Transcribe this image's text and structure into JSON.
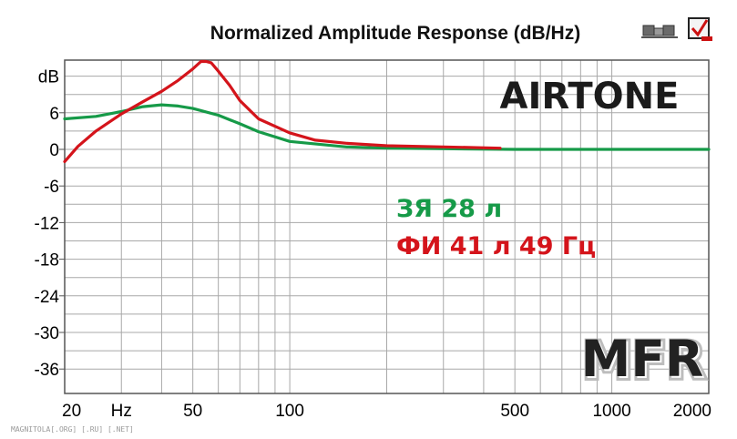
{
  "chart_data": {
    "type": "line",
    "title": "Normalized Amplitude Response (dB/Hz)",
    "ylabel": "dB",
    "xlabel": "",
    "x_scale": "log",
    "xlim": [
      20,
      2000
    ],
    "ylim": [
      -40,
      13
    ],
    "grid": true,
    "x_ticks": [
      {
        "value": 20,
        "label": "20"
      },
      {
        "value": 30,
        "label": "Hz"
      },
      {
        "value": 50,
        "label": "50"
      },
      {
        "value": 100,
        "label": "100"
      },
      {
        "value": 500,
        "label": "500"
      },
      {
        "value": 1000,
        "label": "1000"
      },
      {
        "value": 2000,
        "label": "2000"
      }
    ],
    "y_ticks": [
      {
        "value": 6,
        "label": "6"
      },
      {
        "value": 0,
        "label": "0"
      },
      {
        "value": -6,
        "label": "-6"
      },
      {
        "value": -12,
        "label": "-12"
      },
      {
        "value": -18,
        "label": "-18"
      },
      {
        "value": -24,
        "label": "-24"
      },
      {
        "value": -30,
        "label": "-30"
      },
      {
        "value": -36,
        "label": "-36"
      }
    ],
    "series": [
      {
        "name": "ЗЯ 28 л",
        "color": "#169a48",
        "x": [
          20,
          25,
          30,
          35,
          40,
          45,
          50,
          60,
          70,
          80,
          100,
          150,
          200,
          300,
          500,
          1000,
          2000
        ],
        "y": [
          5,
          5.4,
          6.2,
          7.0,
          7.3,
          7.1,
          6.7,
          5.6,
          4.2,
          2.9,
          1.3,
          0.4,
          0.2,
          0.1,
          0.0,
          0.0,
          0.0
        ]
      },
      {
        "name": "ФИ 41 л 49 Гц",
        "color": "#d4141b",
        "x": [
          20,
          22,
          25,
          30,
          35,
          40,
          45,
          50,
          53,
          55,
          57,
          60,
          65,
          70,
          80,
          100,
          120,
          150,
          200,
          300,
          450
        ],
        "y": [
          -2.0,
          0.5,
          3.0,
          5.8,
          7.8,
          9.5,
          11.3,
          13.2,
          14.4,
          14.4,
          14.2,
          12.8,
          10.5,
          8.0,
          5.0,
          2.7,
          1.5,
          1.0,
          0.6,
          0.4,
          0.2
        ]
      }
    ]
  },
  "brand": "AIRTONE",
  "notes": {
    "line1": "ЗЯ 28 л",
    "line2": "ФИ 41 л 49 Гц"
  },
  "stamp": "MFR",
  "watermark": "MAGNITOLA[.ORG] [.RU] [.NET]",
  "icons": [
    "toolbar-view-icon",
    "toolbar-check-icon"
  ]
}
